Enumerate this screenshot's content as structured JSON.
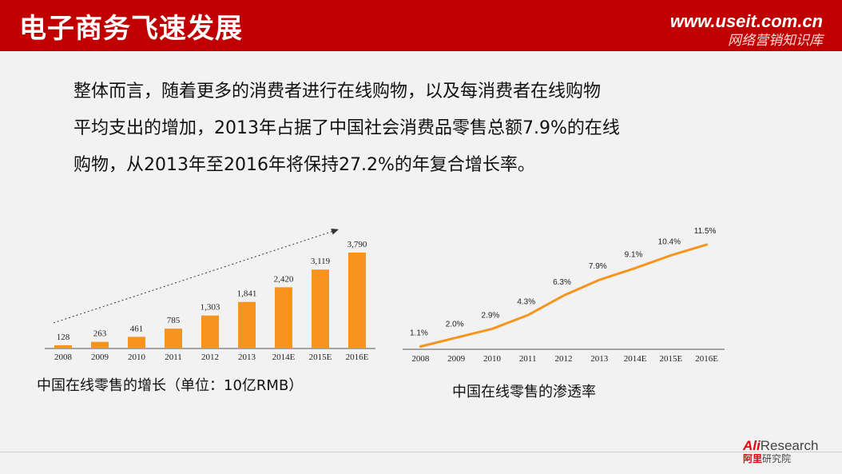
{
  "header": {
    "title": "电子商务飞速发展",
    "brand_url": "www.useit.com.cn",
    "brand_tagline": "网络营销知识库"
  },
  "intro": {
    "lines": [
      "整体而言，随着更多的消费者进行在线购物，以及每消费者在线购物",
      "平均支出的增加，2013年占据了中国社会消费品零售总额7.9%的在线",
      "购物，从2013年至2016年将保持27.2%的年复合增长率。"
    ]
  },
  "colors": {
    "header_bg": "#c00000",
    "accent_orange": "#f7941d",
    "page_bg": "#f2f2f2",
    "logo_red": "#e60012"
  },
  "captions": {
    "left": "中国在线零售的增长（单位：10亿RMB）",
    "right": "中国在线零售的渗透率"
  },
  "chart_data": [
    {
      "type": "bar",
      "title": "中国在线零售的增长（单位：10亿RMB）",
      "categories": [
        "2008",
        "2009",
        "2010",
        "2011",
        "2012",
        "2013",
        "2014E",
        "2015E",
        "2016E"
      ],
      "values": [
        128,
        263,
        461,
        785,
        1303,
        1841,
        2420,
        3119,
        3790
      ],
      "value_labels": [
        "128",
        "263",
        "461",
        "785",
        "1,303",
        "1,841",
        "2,420",
        "3,119",
        "3,790"
      ],
      "ylim": [
        0,
        3790
      ],
      "grid": false,
      "trend_arrow": "dotted arrow rising from 2008 to 2015E"
    },
    {
      "type": "line",
      "title": "中国在线零售的渗透率",
      "categories": [
        "2008",
        "2009",
        "2010",
        "2011",
        "2012",
        "2013",
        "2014E",
        "2015E",
        "2016E"
      ],
      "values": [
        1.1,
        2.0,
        2.9,
        4.3,
        6.3,
        7.9,
        9.1,
        10.4,
        11.5
      ],
      "value_labels": [
        "1.1%",
        "2.0%",
        "2.9%",
        "4.3%",
        "6.3%",
        "7.9%",
        "9.1%",
        "10.4%",
        "11.5%"
      ],
      "ylim": [
        0,
        11.5
      ],
      "grid": false
    }
  ],
  "footer": {
    "logo_ali": "Ali",
    "logo_research": "Research",
    "logo_cn_red": "阿里",
    "logo_cn_grey": "研究院"
  }
}
